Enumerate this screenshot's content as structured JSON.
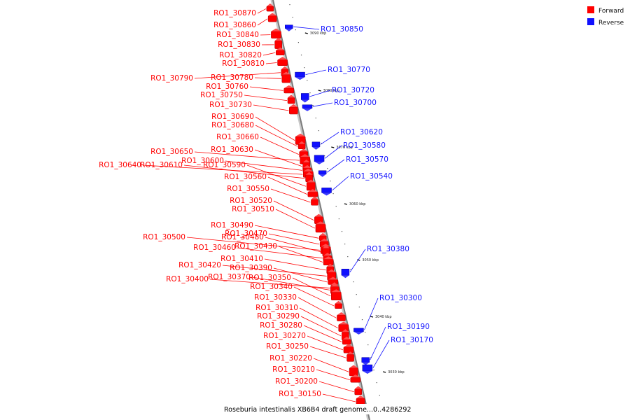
{
  "legend": {
    "forward": "Forward",
    "reverse": "Reverse",
    "forward_color": "#ff0000",
    "reverse_color": "#1010ff"
  },
  "caption": "Roseburia intestinalis XB6B4 draft genome...0..4286292",
  "ticks": [
    "3090 kbp",
    "3080 kbp",
    "3070 kbp",
    "3060 kbp",
    "3050 kbp",
    "3040 kbp",
    "3030 kbp"
  ],
  "forward_genes": [
    {
      "name": "RO1_30870",
      "pos": 0.3
    },
    {
      "name": "RO1_30860",
      "pos": 0.8
    },
    {
      "name": "RO1_30840",
      "pos": 1.6
    },
    {
      "name": "RO1_30830",
      "pos": 2.1
    },
    {
      "name": "RO1_30820",
      "pos": 2.5
    },
    {
      "name": "RO1_30810",
      "pos": 3.0
    },
    {
      "name": "RO1_30790",
      "pos": 3.5
    },
    {
      "name": "RO1_30780",
      "pos": 3.8
    },
    {
      "name": "RO1_30760",
      "pos": 4.4
    },
    {
      "name": "RO1_30750",
      "pos": 4.9
    },
    {
      "name": "RO1_30730",
      "pos": 5.4
    },
    {
      "name": "RO1_30690",
      "pos": 6.9
    },
    {
      "name": "RO1_30680",
      "pos": 7.2
    },
    {
      "name": "RO1_30660",
      "pos": 7.6
    },
    {
      "name": "RO1_30650",
      "pos": 7.9
    },
    {
      "name": "RO1_30630",
      "pos": 8.2
    },
    {
      "name": "RO1_30600",
      "pos": 8.4
    },
    {
      "name": "RO1_30640",
      "pos": 8.6
    },
    {
      "name": "RO1_30610",
      "pos": 8.8
    },
    {
      "name": "RO1_30590",
      "pos": 9.2
    },
    {
      "name": "RO1_30560",
      "pos": 9.6
    },
    {
      "name": "RO1_30550",
      "pos": 10.0
    },
    {
      "name": "RO1_30520",
      "pos": 10.9
    },
    {
      "name": "RO1_30510",
      "pos": 11.3
    },
    {
      "name": "RO1_30490",
      "pos": 11.8
    },
    {
      "name": "RO1_30470",
      "pos": 12.1
    },
    {
      "name": "RO1_30500",
      "pos": 12.4
    },
    {
      "name": "RO1_30480",
      "pos": 12.5
    },
    {
      "name": "RO1_30460",
      "pos": 12.8
    },
    {
      "name": "RO1_30430",
      "pos": 13.0
    },
    {
      "name": "RO1_30410",
      "pos": 13.4
    },
    {
      "name": "RO1_30420",
      "pos": 13.7
    },
    {
      "name": "RO1_30390",
      "pos": 14.0
    },
    {
      "name": "RO1_30400",
      "pos": 14.3
    },
    {
      "name": "RO1_30370",
      "pos": 14.4
    },
    {
      "name": "RO1_30350",
      "pos": 14.7
    },
    {
      "name": "RO1_30340",
      "pos": 15.2
    },
    {
      "name": "RO1_30330",
      "pos": 15.8
    },
    {
      "name": "RO1_30310",
      "pos": 16.3
    },
    {
      "name": "RO1_30290",
      "pos": 16.7
    },
    {
      "name": "RO1_30280",
      "pos": 17.0
    },
    {
      "name": "RO1_30270",
      "pos": 17.4
    },
    {
      "name": "RO1_30250",
      "pos": 17.8
    },
    {
      "name": "RO1_30220",
      "pos": 18.5
    },
    {
      "name": "RO1_30210",
      "pos": 18.9
    },
    {
      "name": "RO1_30200",
      "pos": 19.5
    },
    {
      "name": "RO1_30150",
      "pos": 20.0
    }
  ],
  "reverse_genes": [
    {
      "name": "RO1_30850",
      "pos": 1.2
    },
    {
      "name": "RO1_30770",
      "pos": 3.6
    },
    {
      "name": "RO1_30720",
      "pos": 4.7
    },
    {
      "name": "RO1_30700",
      "pos": 5.2
    },
    {
      "name": "RO1_30620",
      "pos": 7.1
    },
    {
      "name": "RO1_30580",
      "pos": 7.8
    },
    {
      "name": "RO1_30570",
      "pos": 8.5
    },
    {
      "name": "RO1_30540",
      "pos": 9.4
    },
    {
      "name": "RO1_30380",
      "pos": 13.5
    },
    {
      "name": "RO1_30300",
      "pos": 16.4
    },
    {
      "name": "RO1_30190",
      "pos": 17.9
    },
    {
      "name": "RO1_30170",
      "pos": 18.3
    }
  ]
}
